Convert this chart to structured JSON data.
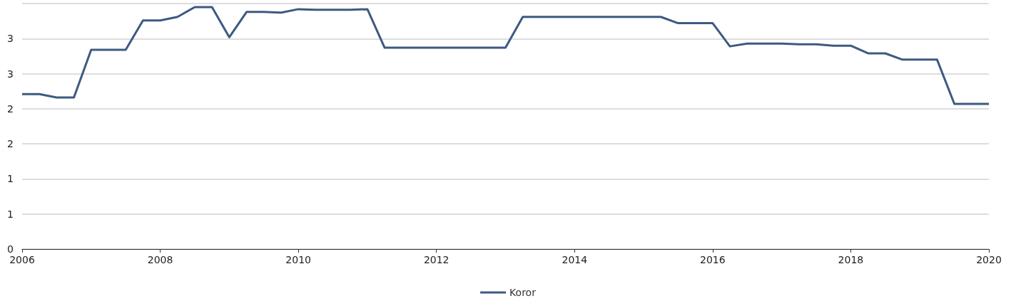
{
  "chart_data": {
    "type": "line",
    "x": [
      2006,
      2006.25,
      2006.5,
      2006.75,
      2007,
      2007.25,
      2007.5,
      2007.75,
      2008,
      2008.25,
      2008.5,
      2008.75,
      2009,
      2009.25,
      2009.5,
      2009.75,
      2010,
      2010.25,
      2010.5,
      2010.75,
      2011,
      2011.25,
      2011.5,
      2011.75,
      2012,
      2012.25,
      2012.5,
      2012.75,
      2013,
      2013.25,
      2013.5,
      2013.75,
      2014,
      2014.25,
      2014.5,
      2014.75,
      2015,
      2015.25,
      2015.5,
      2015.75,
      2016,
      2016.25,
      2016.5,
      2016.75,
      2017,
      2017.25,
      2017.5,
      2017.75,
      2018,
      2018.25,
      2018.5,
      2018.75,
      2019,
      2019.25,
      2019.5,
      2019.75,
      2020
    ],
    "series": [
      {
        "name": "Koror",
        "color": "#3d5a80",
        "values": [
          2.21,
          2.21,
          2.16,
          2.16,
          2.84,
          2.84,
          2.84,
          3.26,
          3.26,
          3.31,
          3.45,
          3.45,
          3.02,
          3.38,
          3.38,
          3.37,
          3.42,
          3.41,
          3.41,
          3.41,
          3.42,
          2.87,
          2.87,
          2.87,
          2.87,
          2.87,
          2.87,
          2.87,
          2.87,
          3.31,
          3.31,
          3.31,
          3.31,
          3.31,
          3.31,
          3.31,
          3.31,
          3.31,
          3.22,
          3.22,
          3.22,
          2.89,
          2.93,
          2.93,
          2.93,
          2.92,
          2.92,
          2.9,
          2.9,
          2.79,
          2.79,
          2.7,
          2.7,
          2.7,
          2.07,
          2.07,
          2.07
        ]
      }
    ],
    "xlim": [
      2006,
      2020
    ],
    "xticks": [
      2006,
      2008,
      2010,
      2012,
      2014,
      2016,
      2018,
      2020
    ],
    "ylim": [
      0,
      3.5
    ],
    "yticks": [
      0,
      {
        "value": 0.5,
        "label": "1"
      },
      1,
      {
        "value": 1.5,
        "label": "2"
      },
      2,
      {
        "value": 2.5,
        "label": "3"
      },
      3,
      {
        "value": 3.5,
        "label": null
      }
    ],
    "grid": "y",
    "legend": "bottom",
    "marker": "none",
    "line_style": "solid"
  }
}
